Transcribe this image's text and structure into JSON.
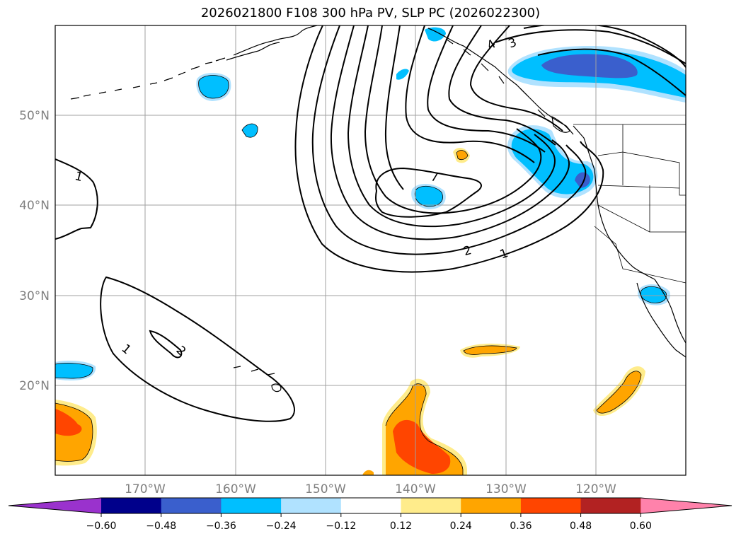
{
  "title": "2026021800 F108 300 hPa PV, SLP PC (2026022300)",
  "map": {
    "lat_labels": [
      "50°N",
      "40°N",
      "30°N",
      "20°N"
    ],
    "lon_labels": [
      "170°W",
      "160°W",
      "150°W",
      "140°W",
      "130°W",
      "120°W"
    ],
    "contour_labels": [
      "1",
      "2",
      "1",
      "2",
      "1",
      "7",
      "4",
      "3"
    ]
  },
  "colorbar": {
    "colors": [
      "#9a32cd",
      "#00008b",
      "#3a5fcd",
      "#00bfff",
      "#b0e2ff",
      "#ffffff",
      "#ffec8b",
      "#ffa500",
      "#ff4500",
      "#b22222",
      "#ff82ab"
    ],
    "tick_labels": [
      "−0.60",
      "−0.48",
      "−0.36",
      "−0.24",
      "−0.12",
      "0.12",
      "0.24",
      "0.36",
      "0.48",
      "0.60"
    ]
  }
}
